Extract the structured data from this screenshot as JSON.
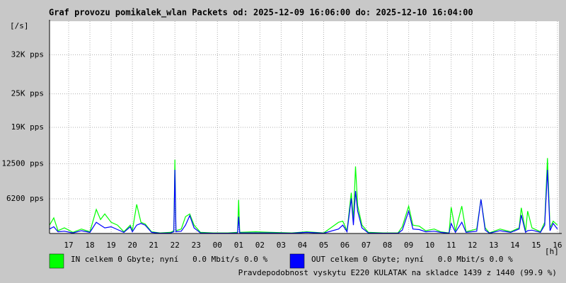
{
  "chart_data": {
    "type": "line",
    "title": "Graf provozu pomikalek_wlan Packets od: 2025-12-09 16:06:00 do: 2025-12-10 16:04:00",
    "y_unit": "[/s]",
    "x_unit": "[h]",
    "note": "Pravdepodobnost vyskytu E220 KULATAK na skladce 1439 z 1440 (99.9 %)",
    "note_color": "#ff0000",
    "grid": true,
    "xlim": [
      16.1,
      40.07
    ],
    "ylim": [
      0,
      38000
    ],
    "xticks": [
      17,
      18,
      19,
      20,
      21,
      22,
      23,
      {
        "value": 24,
        "label": "00"
      },
      {
        "value": 25,
        "label": "01"
      },
      {
        "value": 26,
        "label": "02"
      },
      {
        "value": 27,
        "label": "03"
      },
      {
        "value": 28,
        "label": "04"
      },
      {
        "value": 29,
        "label": "05"
      },
      {
        "value": 30,
        "label": "06"
      },
      {
        "value": 31,
        "label": "07"
      },
      {
        "value": 32,
        "label": "08"
      },
      {
        "value": 33,
        "label": "09"
      },
      {
        "value": 34,
        "label": "10"
      },
      {
        "value": 35,
        "label": "11"
      },
      {
        "value": 36,
        "label": "12"
      },
      {
        "value": 37,
        "label": "13"
      },
      {
        "value": 38,
        "label": "14"
      },
      {
        "value": 39,
        "label": "15"
      },
      {
        "value": 40,
        "label": "16"
      }
    ],
    "yticks": [
      {
        "value": 6200,
        "label": "6200 pps"
      },
      {
        "value": 12500,
        "label": "12500 pps"
      },
      {
        "value": 19000,
        "label": "19K pps"
      },
      {
        "value": 25000,
        "label": "25K pps"
      },
      {
        "value": 32000,
        "label": "32K pps"
      }
    ],
    "x": [
      16.1,
      16.3,
      16.5,
      16.8,
      17.2,
      17.6,
      18.0,
      18.3,
      18.5,
      18.7,
      19.0,
      19.3,
      19.6,
      19.9,
      20.0,
      20.2,
      20.4,
      20.6,
      20.9,
      21.3,
      21.8,
      21.95,
      22.0,
      22.05,
      22.3,
      22.5,
      22.7,
      22.9,
      23.2,
      23.8,
      24.5,
      24.95,
      25.0,
      25.05,
      25.8,
      26.5,
      27.5,
      28.2,
      29.0,
      29.7,
      29.9,
      30.1,
      30.3,
      30.4,
      30.5,
      30.6,
      30.8,
      31.1,
      31.8,
      32.5,
      32.7,
      33.0,
      33.2,
      33.5,
      33.8,
      34.2,
      34.5,
      34.9,
      35.0,
      35.2,
      35.5,
      35.7,
      36.2,
      36.4,
      36.6,
      36.8,
      37.3,
      37.8,
      38.2,
      38.3,
      38.5,
      38.6,
      38.8,
      39.2,
      39.4,
      39.53,
      39.65,
      39.8,
      40.0
    ],
    "series": [
      {
        "name": "IN celkem 0 Gbyte; nyní   0.0 Mbit/s 0.0 %",
        "color": "#00ff00",
        "values": [
          1500,
          2800,
          500,
          1000,
          200,
          800,
          300,
          4300,
          2500,
          3500,
          2000,
          1500,
          300,
          1500,
          500,
          5200,
          2000,
          1700,
          300,
          100,
          200,
          500,
          13200,
          500,
          800,
          3000,
          3500,
          1500,
          200,
          100,
          100,
          200,
          6000,
          200,
          300,
          200,
          100,
          300,
          100,
          2000,
          2200,
          500,
          7300,
          2500,
          12000,
          5000,
          1500,
          200,
          100,
          100,
          1200,
          4900,
          1500,
          1300,
          500,
          800,
          300,
          100,
          4700,
          400,
          4900,
          300,
          800,
          6100,
          1000,
          100,
          800,
          300,
          1000,
          4600,
          300,
          4000,
          1000,
          300,
          2000,
          13500,
          1000,
          2200,
          1500
        ]
      },
      {
        "name": "OUT celkem 0 Gbyte; nyní   0.0 Mbit/s 0.0 %",
        "color": "#0000ff",
        "values": [
          800,
          1200,
          300,
          400,
          100,
          500,
          200,
          2000,
          1500,
          1000,
          1200,
          700,
          200,
          1200,
          300,
          1500,
          1800,
          1500,
          200,
          50,
          100,
          300,
          11400,
          300,
          400,
          1500,
          3200,
          1000,
          100,
          50,
          50,
          100,
          3000,
          100,
          100,
          100,
          50,
          200,
          50,
          800,
          1500,
          300,
          6300,
          1500,
          7600,
          4000,
          1000,
          100,
          50,
          50,
          600,
          4000,
          800,
          700,
          300,
          400,
          200,
          50,
          1800,
          200,
          2000,
          200,
          400,
          6100,
          600,
          50,
          500,
          200,
          800,
          3300,
          200,
          500,
          600,
          200,
          1500,
          11400,
          500,
          1800,
          800
        ]
      }
    ]
  }
}
